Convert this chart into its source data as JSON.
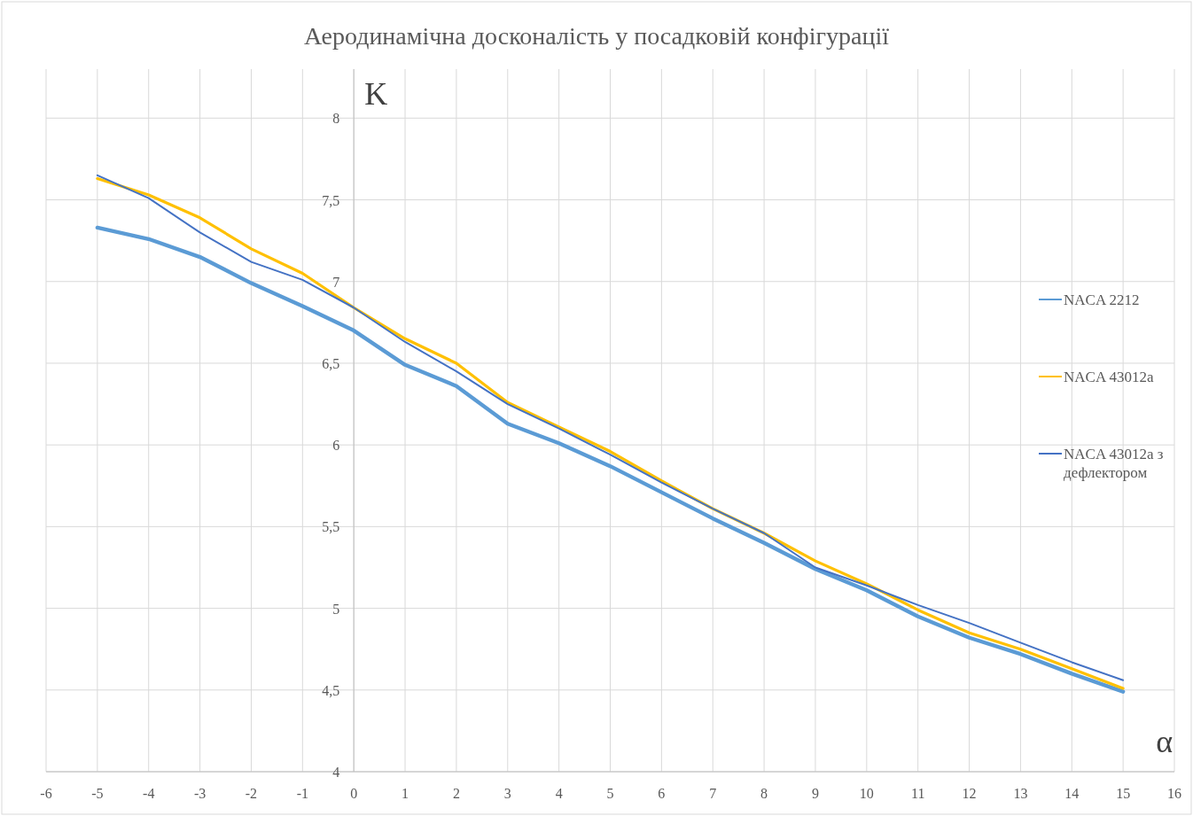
{
  "chart_data": {
    "type": "line",
    "title": "Аеродинамічна досконалість у посадковій конфігурації",
    "xlabel": "α",
    "ylabel": "K",
    "x": [
      -5,
      -4,
      -3,
      -2,
      -1,
      0,
      1,
      2,
      3,
      4,
      5,
      6,
      7,
      8,
      9,
      10,
      11,
      12,
      13,
      14,
      15
    ],
    "series": [
      {
        "name": "NACA 2212",
        "color": "#5b9bd5",
        "values": [
          7.33,
          7.26,
          7.15,
          6.99,
          6.85,
          6.7,
          6.49,
          6.36,
          6.13,
          6.01,
          5.87,
          5.71,
          5.55,
          5.4,
          5.24,
          5.11,
          4.95,
          4.82,
          4.72,
          4.6,
          4.49
        ]
      },
      {
        "name": "NACA 43012a",
        "color": "#ffc000",
        "values": [
          7.63,
          7.53,
          7.39,
          7.2,
          7.05,
          6.84,
          6.65,
          6.5,
          6.26,
          6.11,
          5.96,
          5.78,
          5.61,
          5.46,
          5.29,
          5.15,
          4.99,
          4.85,
          4.75,
          4.63,
          4.51
        ]
      },
      {
        "name": "NACA 43012a з дефлектором",
        "color": "#4472c4",
        "values": [
          7.65,
          7.51,
          7.3,
          7.12,
          7.01,
          6.84,
          6.63,
          6.45,
          6.25,
          6.1,
          5.94,
          5.77,
          5.61,
          5.46,
          5.25,
          5.14,
          5.02,
          4.91,
          4.79,
          4.67,
          4.56
        ]
      }
    ],
    "xlim": [
      -6,
      16
    ],
    "xticks": [
      -6,
      -5,
      -4,
      -3,
      -2,
      -1,
      0,
      1,
      2,
      3,
      4,
      5,
      6,
      7,
      8,
      9,
      10,
      11,
      12,
      13,
      14,
      15,
      16
    ],
    "ylim": [
      4,
      8.3
    ],
    "yticks": [
      4,
      {
        "value": 4.5,
        "label": "4,5"
      },
      5,
      {
        "value": 5.5,
        "label": "5,5"
      },
      6,
      {
        "value": 6.5,
        "label": "6,5"
      },
      7,
      {
        "value": 7.5,
        "label": "7,5"
      },
      8
    ],
    "grid": true,
    "legend": "right",
    "marker": "none",
    "line_style": "solid"
  }
}
